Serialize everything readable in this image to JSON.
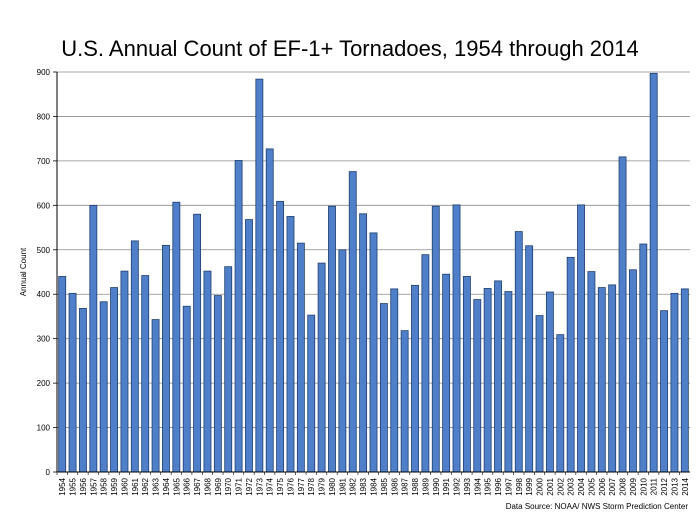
{
  "chart_data": {
    "type": "bar",
    "title": "U.S. Annual Count of EF-1+ Tornadoes, 1954 through 2014",
    "xlabel": "",
    "ylabel": "Annual Count",
    "ylim": [
      0,
      900
    ],
    "yticks": [
      0,
      100,
      200,
      300,
      400,
      500,
      600,
      700,
      800,
      900
    ],
    "grid": true,
    "bar_color": "#4f7fc8",
    "bar_edge_color": "#1f3f6f",
    "categories": [
      "1954",
      "1955",
      "1956",
      "1957",
      "1958",
      "1959",
      "1960",
      "1961",
      "1962",
      "1963",
      "1964",
      "1965",
      "1966",
      "1967",
      "1968",
      "1969",
      "1970",
      "1971",
      "1972",
      "1973",
      "1974",
      "1975",
      "1976",
      "1977",
      "1978",
      "1979",
      "1980",
      "1981",
      "1982",
      "1983",
      "1984",
      "1985",
      "1986",
      "1987",
      "1988",
      "1989",
      "1990",
      "1991",
      "1992",
      "1993",
      "1994",
      "1995",
      "1996",
      "1997",
      "1998",
      "1999",
      "2000",
      "2001",
      "2002",
      "2003",
      "2004",
      "2005",
      "2006",
      "2007",
      "2008",
      "2009",
      "2010",
      "2011",
      "2012",
      "2013",
      "2014"
    ],
    "values": [
      440,
      402,
      368,
      600,
      383,
      415,
      452,
      520,
      442,
      343,
      510,
      607,
      373,
      580,
      452,
      397,
      462,
      701,
      568,
      884,
      727,
      609,
      575,
      515,
      353,
      470,
      598,
      500,
      676,
      581,
      538,
      379,
      412,
      318,
      420,
      489,
      598,
      445,
      601,
      440,
      388,
      413,
      430,
      406,
      541,
      509,
      352,
      405,
      309,
      483,
      601,
      451,
      415,
      421,
      709,
      455,
      513,
      897,
      363,
      402,
      412
    ],
    "source": "Data Source: NOAA/ NWS Storm Prediction Center"
  }
}
